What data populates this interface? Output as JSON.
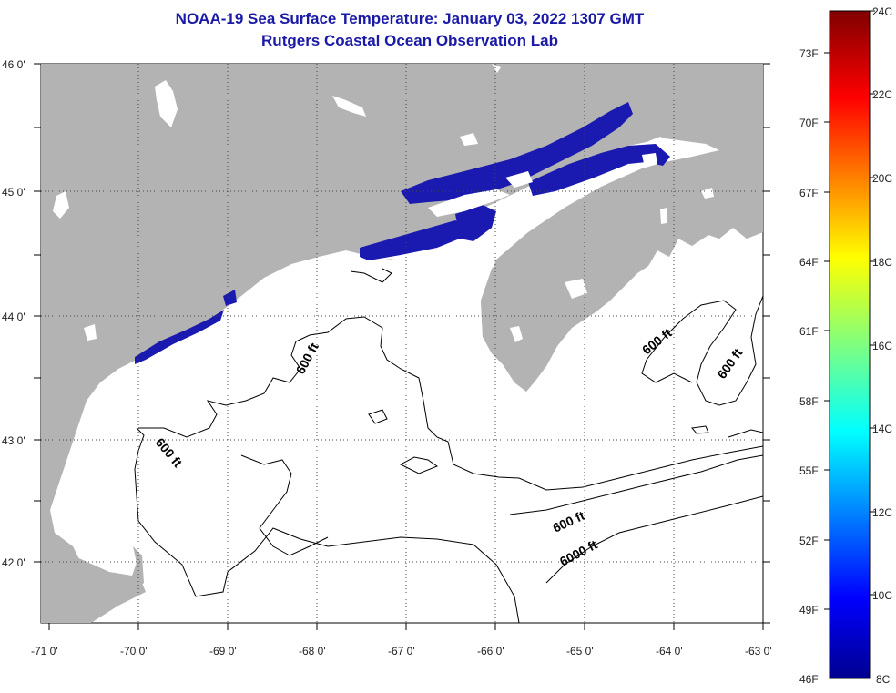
{
  "title": {
    "line1": "NOAA-19 Sea Surface Temperature:  January 03, 2022 1307 GMT",
    "line2": "Rutgers Coastal Ocean Observation Lab"
  },
  "colors": {
    "land": "#b3b3b3",
    "ocean": "#ffffff",
    "sst": "#1a1ab0",
    "title": "#1a1aa6"
  },
  "map": {
    "lon_labels": [
      "-71 0'",
      "-70 0'",
      "-69 0'",
      "-68 0'",
      "-67 0'",
      "-66 0'",
      "-65 0'",
      "-64 0'",
      "-63 0'"
    ],
    "lat_labels": [
      "46 0'",
      "45 0'",
      "44 0'",
      "43 0'",
      "42 0'"
    ],
    "contour_labels": [
      {
        "text": "600 ft"
      },
      {
        "text": "600 ft"
      },
      {
        "text": "600 ft"
      },
      {
        "text": "600 ft"
      },
      {
        "text": "600 ft"
      },
      {
        "text": "6000 ft"
      }
    ]
  },
  "colorbar": {
    "fahrenheit": [
      "73F",
      "70F",
      "67F",
      "64F",
      "61F",
      "58F",
      "55F",
      "52F",
      "49F",
      "46F"
    ],
    "celsius": [
      "24C",
      "22C",
      "20C",
      "18C",
      "16C",
      "14C",
      "12C",
      "10C",
      "8C"
    ]
  }
}
